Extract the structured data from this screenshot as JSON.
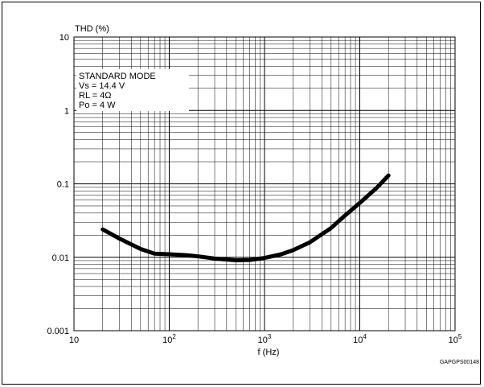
{
  "chart_data": {
    "type": "line",
    "title": "",
    "xlabel": "f (Hz)",
    "ylabel": "THD (%)",
    "x_scale": "log",
    "y_scale": "log",
    "xlim": [
      10,
      100000
    ],
    "ylim": [
      0.001,
      10
    ],
    "grid": true,
    "x_ticks": [
      {
        "base": "10",
        "exp": ""
      },
      {
        "base": "10",
        "exp": "2"
      },
      {
        "base": "10",
        "exp": "3"
      },
      {
        "base": "10",
        "exp": "4"
      },
      {
        "base": "10",
        "exp": "5"
      }
    ],
    "y_ticks": [
      "10",
      "1",
      "0.1",
      "0.01",
      "0.001"
    ],
    "legend_lines": [
      "STANDARD MODE",
      "Vs = 14.4 V",
      "RL = 4Ω",
      "Po = 4 W"
    ],
    "legend_placement": "top-left",
    "series": [
      {
        "x": [
          20,
          30,
          50,
          70,
          100,
          150,
          200,
          300,
          500,
          700,
          1000,
          1500,
          2000,
          3000,
          5000,
          7000,
          10000,
          15000,
          20000
        ],
        "y": [
          0.024,
          0.018,
          0.013,
          0.0112,
          0.011,
          0.0107,
          0.0103,
          0.0096,
          0.0091,
          0.0092,
          0.0098,
          0.011,
          0.0125,
          0.016,
          0.025,
          0.037,
          0.055,
          0.088,
          0.13
        ]
      }
    ],
    "figure_code": "GAPGPS00148"
  }
}
